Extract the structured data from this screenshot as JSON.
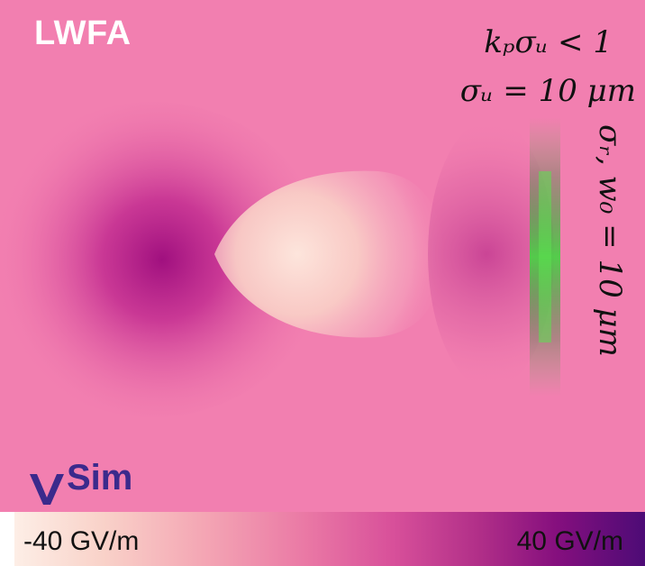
{
  "title": "LWFA",
  "equations": {
    "line1": "kₚσᵤ < 1",
    "line2": "σᵤ = 10 μm",
    "vertical": "σᵣ, w₀ = 10 μm"
  },
  "logo": {
    "text": "Sim",
    "mark_icon": "v-chevron-icon"
  },
  "colorbar": {
    "min_label": "-40 GV/m",
    "max_label": "40 GV/m"
  },
  "colors": {
    "background": "#f27fb0",
    "dark_lobe": "#a6168a",
    "light_bubble": "#fbd6cd",
    "laser_green": "#4cd046",
    "logo": "#3b2a8c"
  }
}
